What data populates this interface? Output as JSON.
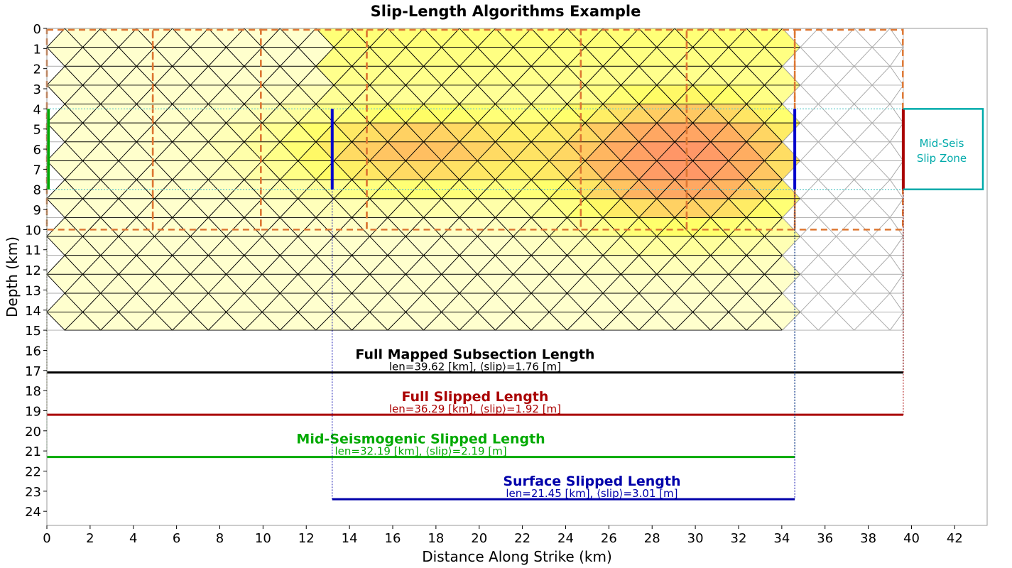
{
  "chart_data": {
    "type": "heatmap",
    "title": "Slip-Length Algorithms Example",
    "xlabel": "Distance Along Strike (km)",
    "ylabel": "Depth (km)",
    "xlim": [
      0,
      43.5
    ],
    "ylim": [
      24.7,
      0
    ],
    "x_ticks": [
      "0",
      "2",
      "4",
      "6",
      "8",
      "10",
      "12",
      "14",
      "16",
      "18",
      "20",
      "22",
      "24",
      "26",
      "28",
      "30",
      "32",
      "34",
      "36",
      "38",
      "40",
      "42"
    ],
    "y_ticks": [
      "0",
      "1",
      "2",
      "3",
      "4",
      "5",
      "6",
      "7",
      "8",
      "9",
      "10",
      "11",
      "12",
      "13",
      "14",
      "15",
      "16",
      "17",
      "18",
      "19",
      "20",
      "21",
      "22",
      "23",
      "24"
    ],
    "grid": false,
    "subsection_breaks_km": [
      0,
      4.9,
      9.9,
      14.8,
      24.7,
      29.6,
      34.6,
      39.6
    ],
    "subsection_depth_km": [
      0,
      10
    ],
    "mid_seismogenic_zone_km": [
      4,
      8
    ],
    "fault_bottom_km": 15,
    "ruptured_patch_extent_km": [
      0,
      34.6
    ],
    "slip_color_scale": [
      "#ffffe0",
      "#ffff66",
      "#ffb060",
      "#ff8a6a"
    ],
    "lengths": [
      {
        "name": "Full Mapped Subsection Length",
        "stats": "len=39.62 [km], ⟨slip⟩=1.76 [m]",
        "x_start": 0,
        "x_end": 39.62,
        "y": 17.1,
        "color": "#000000"
      },
      {
        "name": "Full Slipped Length",
        "stats": "len=36.29 [km], ⟨slip⟩=1.92 [m]",
        "x_start": 0,
        "x_end": 39.62,
        "y": 19.2,
        "color": "#aa0000"
      },
      {
        "name": "Mid-Seismogenic Slipped Length",
        "stats": "len=32.19 [km], ⟨slip⟩=2.19 [m]",
        "x_start": 0,
        "x_end": 34.6,
        "y": 21.3,
        "color": "#00aa00"
      },
      {
        "name": "Surface Slipped Length",
        "stats": "len=21.45 [km], ⟨slip⟩=3.01 [m]",
        "x_start": 13.2,
        "x_end": 34.6,
        "y": 23.4,
        "color": "#0000aa"
      }
    ],
    "markers": [
      {
        "x": 0,
        "y_range": [
          4,
          8
        ],
        "color": "#00aa00"
      },
      {
        "x": 13.2,
        "y_range": [
          4,
          8
        ],
        "color": "#0000cc"
      },
      {
        "x": 34.6,
        "y_range": [
          4,
          8
        ],
        "color": "#0000cc"
      },
      {
        "x": 39.62,
        "y_range": [
          4,
          8
        ],
        "color": "#aa0000"
      }
    ],
    "annotation": {
      "lines": [
        "Mid-Seis",
        "Slip Zone"
      ],
      "color": "#00aaaa"
    }
  }
}
